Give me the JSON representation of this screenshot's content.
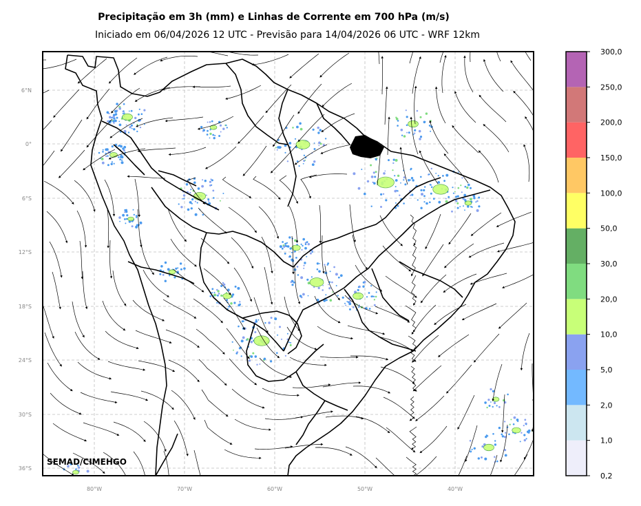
{
  "title": "Precipitação em 3h (mm) e Linhas de Corrente em 700 hPa (m/s)",
  "subtitle": "Iniciado em 06/04/2026 12 UTC - Previsão para 14/04/2026 06 UTC - WRF 12km",
  "credit": "SEMAD/CIMEHGO",
  "lat_ticks": [
    "6°N",
    "0°",
    "6°S",
    "12°S",
    "18°S",
    "24°S",
    "30°S",
    "36°S"
  ],
  "lon_ticks": [
    "80°W",
    "70°W",
    "60°W",
    "50°W",
    "40°W"
  ],
  "colorbar": {
    "labels": [
      "0,2",
      "1,0",
      "2,0",
      "5,0",
      "10,0",
      "20,0",
      "30,0",
      "50,0",
      "100,0",
      "150,0",
      "200,0",
      "250,0",
      "300,0"
    ],
    "colors": [
      "#eeeefa",
      "#cce6f0",
      "#73b9ff",
      "#8aa2f0",
      "#c8ff78",
      "#80dc80",
      "#64af64",
      "#ffff64",
      "#ffc864",
      "#ff6464",
      "#d27878",
      "#b464b4"
    ]
  }
}
